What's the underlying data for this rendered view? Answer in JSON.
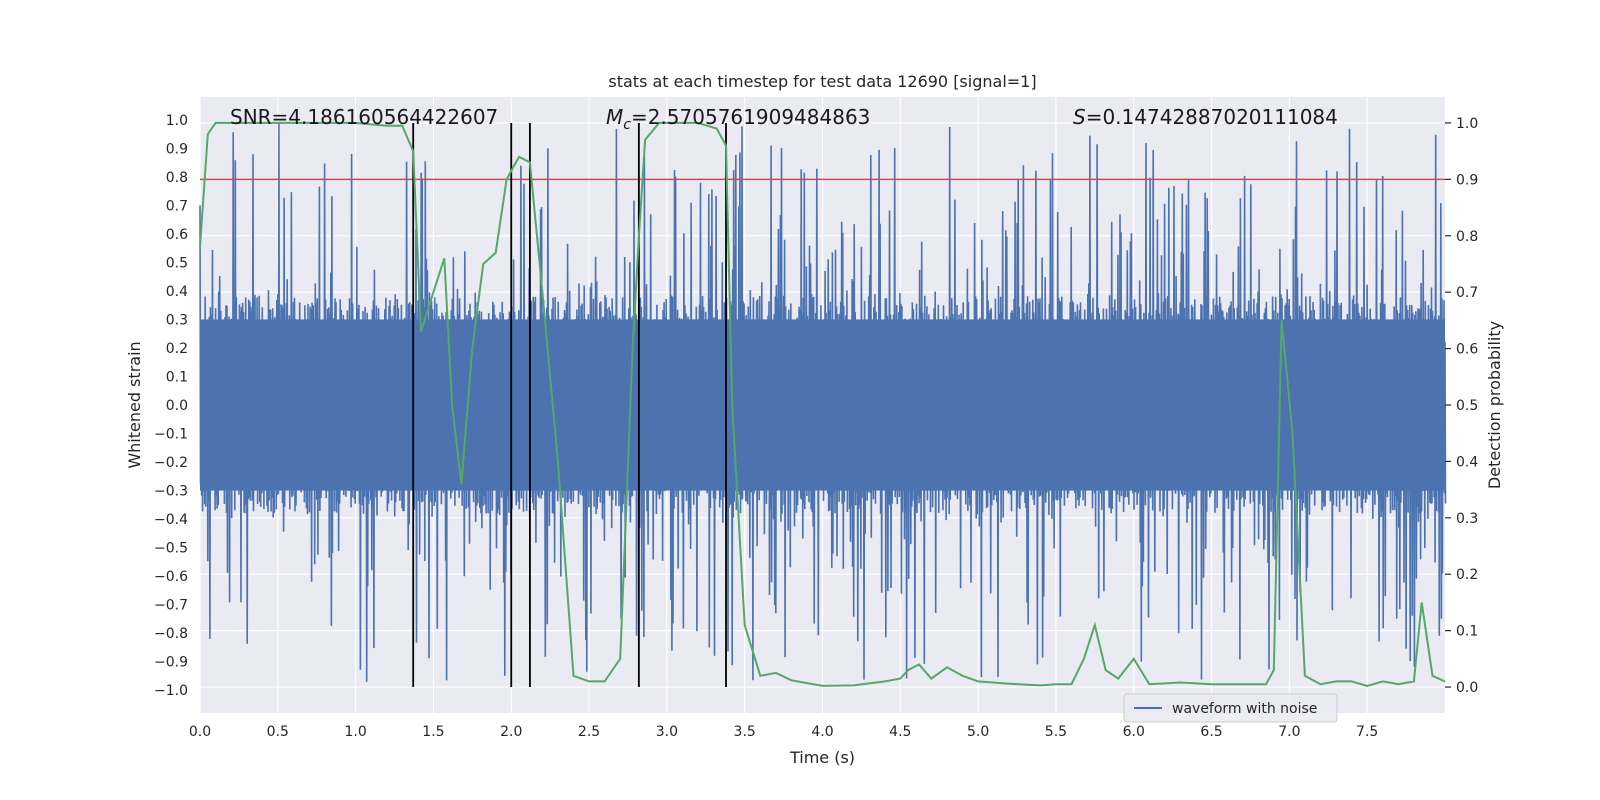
{
  "chart_data": {
    "type": "line",
    "title": "stats at each timestep for test data 12690 [signal=1]",
    "xlabel": "Time (s)",
    "ylabel_left": "Whitened strain",
    "ylabel_right": "Detection probability",
    "xlim": [
      0.0,
      8.0
    ],
    "ylim_left": [
      -1.08,
      1.08
    ],
    "ylim_right": [
      -0.046,
      1.046
    ],
    "x_ticks": [
      0.0,
      0.5,
      1.0,
      1.5,
      2.0,
      2.5,
      3.0,
      3.5,
      4.0,
      4.5,
      5.0,
      5.5,
      6.0,
      6.5,
      7.0,
      7.5
    ],
    "x_tick_labels": [
      "0.0",
      "0.5",
      "1.0",
      "1.5",
      "2.0",
      "2.5",
      "3.0",
      "3.5",
      "4.0",
      "4.5",
      "5.0",
      "5.5",
      "6.0",
      "6.5",
      "7.0",
      "7.5"
    ],
    "y_left_ticks": [
      -1.0,
      -0.9,
      -0.8,
      -0.7,
      -0.6,
      -0.5,
      -0.4,
      -0.3,
      -0.2,
      -0.1,
      0.0,
      0.1,
      0.2,
      0.3,
      0.4,
      0.5,
      0.6,
      0.7,
      0.8,
      0.9,
      1.0
    ],
    "y_left_tick_labels": [
      "−1.0",
      "−0.9",
      "−0.8",
      "−0.7",
      "−0.6",
      "−0.5",
      "−0.4",
      "−0.3",
      "−0.2",
      "−0.1",
      "0.0",
      "0.1",
      "0.2",
      "0.3",
      "0.4",
      "0.5",
      "0.6",
      "0.7",
      "0.8",
      "0.9",
      "1.0"
    ],
    "y_right_ticks": [
      0.0,
      0.1,
      0.2,
      0.3,
      0.4,
      0.5,
      0.6,
      0.7,
      0.8,
      0.9,
      1.0
    ],
    "y_right_tick_labels": [
      "0.0",
      "0.1",
      "0.2",
      "0.3",
      "0.4",
      "0.5",
      "0.6",
      "0.7",
      "0.8",
      "0.9",
      "1.0"
    ],
    "stats": {
      "snr": "SNR=4.186160564422607",
      "mc_symbol": "M",
      "mc_sub": "c",
      "mc_value": "=2.5705761909484863",
      "s_symbol": "S",
      "s_value": "=0.14742887020111084"
    },
    "threshold": {
      "value": 0.9,
      "axis": "right",
      "color": "#c44e52"
    },
    "vertical_lines": [
      1.37,
      2.0,
      2.12,
      2.82,
      3.38
    ],
    "waveform": {
      "name": "waveform with noise",
      "color": "#4c72b0",
      "duration": 8.0,
      "n_samples": 1200,
      "typical_amplitude": 0.38,
      "min": -0.98,
      "max": 0.99
    },
    "probability": {
      "name": "detection probability",
      "color": "#55a868",
      "x": [
        0.0,
        0.05,
        0.1,
        0.2,
        0.3,
        0.5,
        0.8,
        1.0,
        1.2,
        1.3,
        1.37,
        1.42,
        1.5,
        1.57,
        1.62,
        1.68,
        1.75,
        1.82,
        1.9,
        1.97,
        2.05,
        2.12,
        2.2,
        2.3,
        2.4,
        2.5,
        2.6,
        2.7,
        2.78,
        2.82,
        2.86,
        2.95,
        3.05,
        3.2,
        3.32,
        3.38,
        3.42,
        3.5,
        3.6,
        3.7,
        3.8,
        4.0,
        4.2,
        4.4,
        4.5,
        4.55,
        4.62,
        4.7,
        4.8,
        4.9,
        5.0,
        5.2,
        5.4,
        5.5,
        5.6,
        5.68,
        5.75,
        5.82,
        5.9,
        6.0,
        6.1,
        6.3,
        6.5,
        6.7,
        6.85,
        6.9,
        6.95,
        7.02,
        7.1,
        7.2,
        7.3,
        7.4,
        7.5,
        7.6,
        7.7,
        7.8,
        7.85,
        7.92,
        8.0
      ],
      "y": [
        0.78,
        0.98,
        1.0,
        1.0,
        1.0,
        1.0,
        1.0,
        1.0,
        0.995,
        0.995,
        0.95,
        0.63,
        0.7,
        0.76,
        0.5,
        0.36,
        0.6,
        0.75,
        0.77,
        0.9,
        0.94,
        0.93,
        0.7,
        0.4,
        0.02,
        0.01,
        0.01,
        0.05,
        0.6,
        0.8,
        0.97,
        1.0,
        1.0,
        1.0,
        0.99,
        0.96,
        0.5,
        0.11,
        0.02,
        0.025,
        0.012,
        0.002,
        0.003,
        0.01,
        0.015,
        0.03,
        0.04,
        0.015,
        0.035,
        0.02,
        0.01,
        0.006,
        0.003,
        0.005,
        0.005,
        0.05,
        0.11,
        0.03,
        0.015,
        0.05,
        0.005,
        0.008,
        0.005,
        0.005,
        0.005,
        0.03,
        0.65,
        0.45,
        0.02,
        0.005,
        0.01,
        0.01,
        0.002,
        0.01,
        0.005,
        0.01,
        0.15,
        0.02,
        0.01
      ]
    },
    "legend": {
      "entries": [
        "waveform with noise"
      ],
      "location": "lower-right"
    }
  }
}
